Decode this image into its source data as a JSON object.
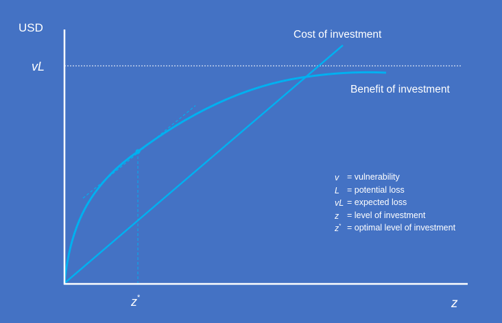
{
  "axes": {
    "y_label": "USD",
    "x_label": "z"
  },
  "ticks": {
    "y_tick": "vL",
    "x_tick": "z",
    "x_tick_sup": "*"
  },
  "curves": {
    "cost_label": "Cost of investment",
    "benefit_label": "Benefit of investment"
  },
  "legend": {
    "items": [
      {
        "symbol": "v",
        "sup": "",
        "definition": "= vulnerability"
      },
      {
        "symbol": "L",
        "sup": "",
        "definition": "= potential loss"
      },
      {
        "symbol": "vL",
        "sup": "",
        "definition": "= expected loss"
      },
      {
        "symbol": "z",
        "sup": "",
        "definition": "= level of investment"
      },
      {
        "symbol": "z",
        "sup": "*",
        "definition": "= optimal level of investment"
      }
    ]
  },
  "colors": {
    "background": "#4472c4",
    "axes": "#ffffff",
    "curves": "#00b0f0",
    "text": "#ffffff"
  }
}
